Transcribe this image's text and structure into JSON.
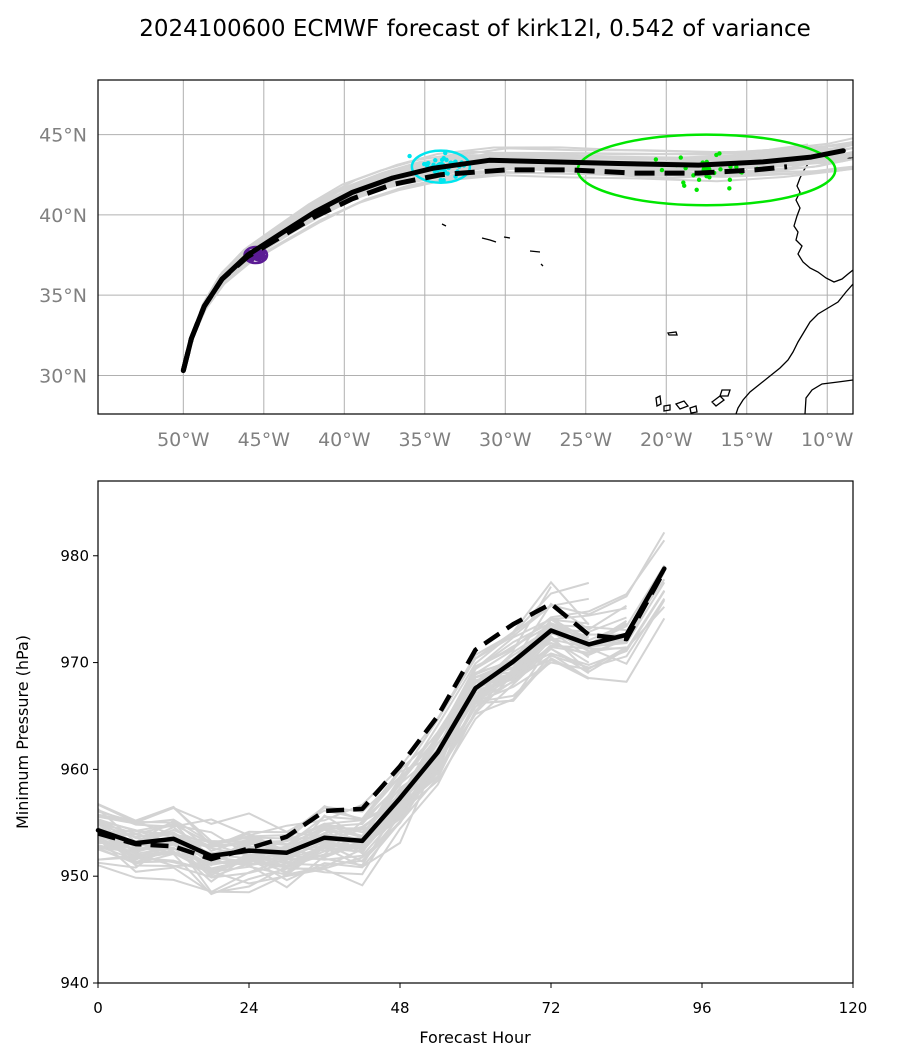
{
  "figure": {
    "title": "2024100600 ECMWF forecast of kirk12l, 0.542 of variance"
  },
  "colors": {
    "ensemble": "#d3d3d3",
    "mean": "#000000",
    "cluster_48h": "#5b1c94",
    "cluster_72h": "#00e5ee",
    "cluster_96h": "#00e600"
  },
  "chart_data": [
    {
      "type": "line",
      "name": "track-map",
      "xlim": [
        -55.3,
        -8.4
      ],
      "ylim": [
        27.6,
        48.4
      ],
      "x_ticks": [
        -50,
        -45,
        -40,
        -35,
        -30,
        -25,
        -20,
        -15,
        -10
      ],
      "x_tick_labels": [
        "50°W",
        "45°W",
        "40°W",
        "35°W",
        "30°W",
        "25°W",
        "20°W",
        "15°W",
        "10°W"
      ],
      "y_ticks": [
        30,
        35,
        40,
        45
      ],
      "y_tick_labels": [
        "30°N",
        "35°N",
        "40°N",
        "45°N"
      ],
      "grid": true,
      "ensemble_mean_track": {
        "style": "solid",
        "lon": [
          -50.0,
          -49.5,
          -48.7,
          -47.6,
          -46.0,
          -44.0,
          -41.8,
          -39.5,
          -37.0,
          -34.5,
          -31.0,
          -27.0,
          -23.0,
          -18.0,
          -14.0,
          -11.0,
          -9.0
        ],
        "lat": [
          30.3,
          32.3,
          34.3,
          36.0,
          37.5,
          38.8,
          40.2,
          41.4,
          42.3,
          42.9,
          43.4,
          43.3,
          43.2,
          43.1,
          43.3,
          43.6,
          44.0
        ]
      },
      "cluster_mean_track": {
        "style": "dashed",
        "lon": [
          -50.0,
          -49.5,
          -48.7,
          -47.6,
          -46.0,
          -44.0,
          -41.8,
          -39.5,
          -37.0,
          -34.0,
          -30.0,
          -26.0,
          -22.0,
          -18.0,
          -14.5,
          -12.5
        ],
        "lat": [
          30.3,
          32.3,
          34.3,
          36.0,
          37.4,
          38.6,
          39.9,
          41.0,
          41.9,
          42.5,
          42.8,
          42.8,
          42.6,
          42.6,
          42.8,
          43.0
        ]
      },
      "clusters": [
        {
          "lon": -45.5,
          "lat": 37.5,
          "color": "#5b1c94",
          "ellipse": [
            0.7,
            0.5
          ]
        },
        {
          "lon": -34.0,
          "lat": 43.0,
          "color": "#00e5ee",
          "ellipse": [
            1.8,
            1.0
          ]
        },
        {
          "lon": -17.5,
          "lat": 42.8,
          "color": "#00e600",
          "ellipse": [
            8.0,
            2.2
          ]
        }
      ]
    },
    {
      "type": "line",
      "name": "pressure-plot",
      "xlabel": "Forecast Hour",
      "ylabel": "Minimum Pressure (hPa)",
      "xlim": [
        0,
        120
      ],
      "ylim": [
        940,
        987
      ],
      "x_ticks": [
        0,
        24,
        48,
        72,
        96,
        120
      ],
      "y_ticks": [
        940,
        950,
        960,
        970,
        980
      ],
      "grid": false,
      "series": [
        {
          "style": "solid",
          "x": [
            0,
            6,
            12,
            18,
            24,
            30,
            36,
            42,
            48,
            54,
            60,
            66,
            72,
            78,
            84,
            90
          ],
          "y": [
            954.3,
            953.1,
            953.5,
            951.9,
            952.4,
            952.2,
            953.6,
            953.3,
            957.3,
            961.6,
            967.6,
            970.1,
            973.0,
            971.7,
            972.6,
            978.8
          ]
        },
        {
          "style": "dashed",
          "x": [
            0,
            6,
            12,
            18,
            24,
            30,
            36,
            42,
            48,
            54,
            60,
            66,
            72,
            78,
            84,
            90
          ],
          "y": [
            954.0,
            953.0,
            952.8,
            951.6,
            952.6,
            953.7,
            956.1,
            956.3,
            960.3,
            965.0,
            971.2,
            973.6,
            975.5,
            972.6,
            972.2,
            978.6
          ]
        }
      ]
    }
  ]
}
